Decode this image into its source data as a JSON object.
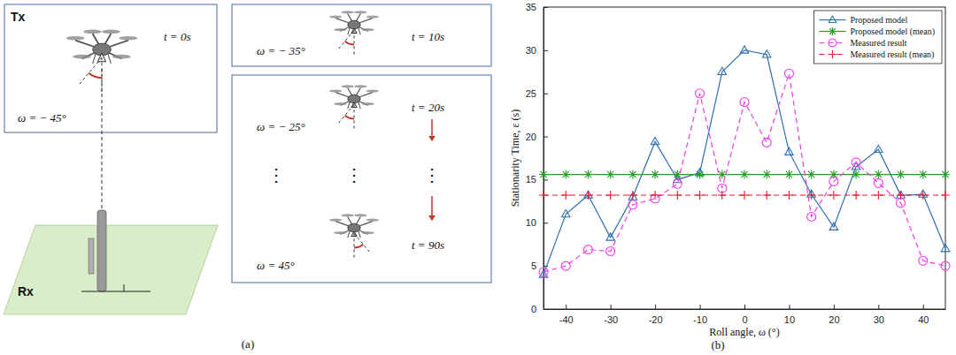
{
  "diagram": {
    "panel_label": "(a)",
    "tx": "Tx",
    "rx": "Rx",
    "frames": [
      {
        "time": "t = 0s",
        "angle": "ω = − 45°"
      },
      {
        "time": "t = 10s",
        "angle": "ω = − 35°"
      },
      {
        "time": "t = 20s",
        "angle": "ω = − 25°"
      },
      {
        "time": "t = 90s",
        "angle": "ω = 45°"
      }
    ],
    "ellipsis": "⋮"
  },
  "chart_data": {
    "type": "line",
    "panel_label": "(b)",
    "x_label": "Roll angle, ω (°)",
    "y_label": "Stationarity Time, ε (s)",
    "x": [
      -45,
      -40,
      -35,
      -30,
      -25,
      -20,
      -15,
      -10,
      -5,
      0,
      5,
      10,
      15,
      20,
      25,
      30,
      35,
      40,
      45
    ],
    "xlim": [
      -45,
      45
    ],
    "xticks": [
      -40,
      -30,
      -20,
      -10,
      0,
      10,
      20,
      30,
      40
    ],
    "ylim": [
      0,
      35
    ],
    "yticks": [
      0,
      5,
      10,
      15,
      20,
      25,
      30,
      35
    ],
    "grid": false,
    "legend": "top-right",
    "series": [
      {
        "name": "Proposed model",
        "color": "#2f6fb0",
        "marker": "triangle",
        "line_style": "solid",
        "values": [
          4,
          11,
          13.2,
          8.3,
          13,
          19.4,
          15,
          15.8,
          27.5,
          30,
          29.5,
          18.2,
          13.3,
          9.5,
          16.5,
          18.5,
          13.2,
          13.3,
          7
        ]
      },
      {
        "name": "Proposed model (mean)",
        "color": "#22a022",
        "marker": "star",
        "line_style": "solid",
        "values": [
          15.6,
          15.6,
          15.6,
          15.6,
          15.6,
          15.6,
          15.6,
          15.6,
          15.6,
          15.6,
          15.6,
          15.6,
          15.6,
          15.6,
          15.6,
          15.6,
          15.6,
          15.6,
          15.6
        ]
      },
      {
        "name": "Measured result",
        "color": "#f03ce8",
        "marker": "circle",
        "line_style": "dashed",
        "values": [
          4.3,
          5,
          6.9,
          6.7,
          12.1,
          12.8,
          14.5,
          25,
          14,
          24,
          19.3,
          27.3,
          10.7,
          14.8,
          17,
          14.6,
          12.3,
          5.6,
          5
        ]
      },
      {
        "name": "Measured result (mean)",
        "color": "#e8192c",
        "marker": "plus",
        "line_style": "dashed",
        "values": [
          13.2,
          13.2,
          13.2,
          13.2,
          13.2,
          13.2,
          13.2,
          13.2,
          13.2,
          13.2,
          13.2,
          13.2,
          13.2,
          13.2,
          13.2,
          13.2,
          13.2,
          13.2,
          13.2
        ]
      }
    ]
  }
}
